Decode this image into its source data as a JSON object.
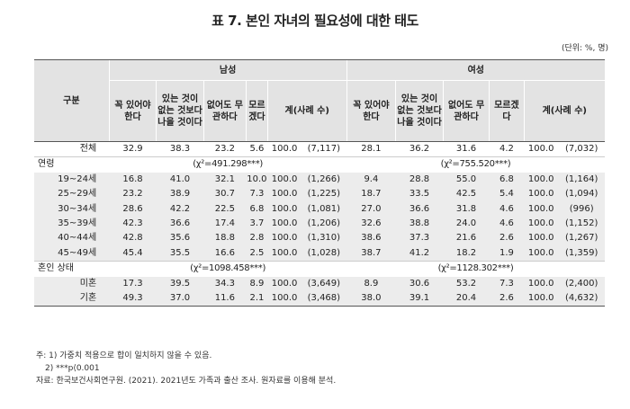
{
  "title": "표 7. 본인 자녀의 필요성에 대한 태도",
  "unit": "(단위: %, 명)",
  "header": {
    "group_label": "구분",
    "male": "남성",
    "female": "여성",
    "cols": [
      "꼭 있어야 한다",
      "있는 것이 없는 것보다 나을 것이다",
      "없어도 무관하다",
      "모르겠다",
      "계(사례 수)"
    ]
  },
  "rows": {
    "total": {
      "label": "전체",
      "m": [
        "32.9",
        "38.3",
        "23.2",
        "5.6",
        "100.0",
        "(7,117)"
      ],
      "f": [
        "28.1",
        "36.2",
        "31.6",
        "4.2",
        "100.0",
        "(7,032)"
      ]
    },
    "age_label": "연령",
    "age_chi_m": "(χ²=491.298***)",
    "age_chi_f": "(χ²=755.520***)",
    "age": [
      {
        "label": "19~24세",
        "m": [
          "16.8",
          "41.0",
          "32.1",
          "10.0",
          "100.0",
          "(1,266)"
        ],
        "f": [
          "9.4",
          "28.8",
          "55.0",
          "6.8",
          "100.0",
          "(1,164)"
        ]
      },
      {
        "label": "25~29세",
        "m": [
          "23.2",
          "38.9",
          "30.7",
          "7.3",
          "100.0",
          "(1,225)"
        ],
        "f": [
          "18.7",
          "33.5",
          "42.5",
          "5.4",
          "100.0",
          "(1,094)"
        ]
      },
      {
        "label": "30~34세",
        "m": [
          "28.6",
          "42.2",
          "22.5",
          "6.8",
          "100.0",
          "(1,081)"
        ],
        "f": [
          "27.0",
          "36.6",
          "31.8",
          "4.6",
          "100.0",
          "(996)"
        ]
      },
      {
        "label": "35~39세",
        "m": [
          "42.3",
          "36.6",
          "17.4",
          "3.7",
          "100.0",
          "(1,206)"
        ],
        "f": [
          "32.6",
          "38.8",
          "24.0",
          "4.6",
          "100.0",
          "(1,152)"
        ]
      },
      {
        "label": "40~44세",
        "m": [
          "42.8",
          "35.6",
          "18.8",
          "2.8",
          "100.0",
          "(1,310)"
        ],
        "f": [
          "38.6",
          "37.3",
          "21.6",
          "2.6",
          "100.0",
          "(1,267)"
        ]
      },
      {
        "label": "45~49세",
        "m": [
          "45.4",
          "35.5",
          "16.6",
          "2.5",
          "100.0",
          "(1,028)"
        ],
        "f": [
          "38.7",
          "41.2",
          "18.2",
          "1.9",
          "100.0",
          "(1,359)"
        ]
      }
    ],
    "marital_label": "혼인 상태",
    "marital_chi_m": "(χ²=1098.458***)",
    "marital_chi_f": "(χ²=1128.302***)",
    "marital": [
      {
        "label": "미혼",
        "m": [
          "17.3",
          "39.5",
          "34.3",
          "8.9",
          "100.0",
          "(3,649)"
        ],
        "f": [
          "8.9",
          "30.6",
          "53.2",
          "7.3",
          "100.0",
          "(2,400)"
        ]
      },
      {
        "label": "기혼",
        "m": [
          "49.3",
          "37.0",
          "11.6",
          "2.1",
          "100.0",
          "(3,468)"
        ],
        "f": [
          "38.0",
          "39.1",
          "20.4",
          "2.6",
          "100.0",
          "(4,632)"
        ]
      }
    ]
  },
  "notes": [
    "주: 1) 가중치 적용으로 합이 일치하지 않을 수 있음.",
    "2) ***p⟨0.001",
    "자료: 한국보건사회연구원. (2021). 2021년도 가족과 출산 조사. 원자료를 이용해 분석."
  ]
}
